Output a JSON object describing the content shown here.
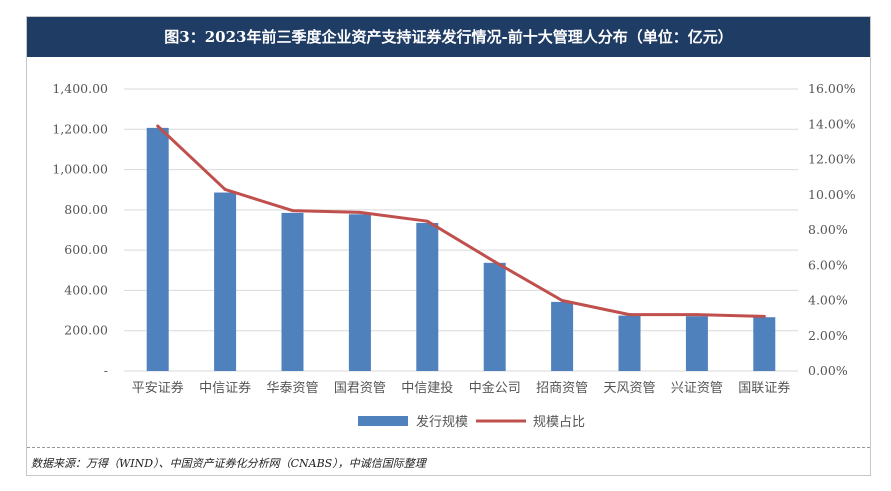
{
  "title": "图3：2023年前三季度企业资产支持证券发行情况-前十大管理人分布（单位：亿元）",
  "source": "数据来源：万得（WIND）、中国资产证券化分析网（CNABS），中诚信国际整理",
  "colors": {
    "bar": "#4f81bd",
    "line": "#c0504d",
    "header": "#1f3c64",
    "grid": "#d9d9d9"
  },
  "chart_data": {
    "type": "bar",
    "title": "",
    "categories": [
      "平安证券",
      "中信证券",
      "华泰资管",
      "国君资管",
      "中信建投",
      "中金公司",
      "招商资管",
      "天风资管",
      "兴证资管",
      "国联证券"
    ],
    "series": [
      {
        "name": "发行规模",
        "type": "bar",
        "axis": "left",
        "values": [
          1207,
          886,
          785,
          778,
          735,
          537,
          343,
          275,
          272,
          267
        ]
      },
      {
        "name": "规模占比",
        "type": "line",
        "axis": "right",
        "values": [
          13.9,
          10.3,
          9.1,
          9.0,
          8.5,
          6.2,
          4.0,
          3.2,
          3.2,
          3.1
        ]
      }
    ],
    "y_left": {
      "min": 0,
      "max": 1400,
      "ticks": [
        "-",
        "200.00",
        "400.00",
        "600.00",
        "800.00",
        "1,000.00",
        "1,200.00",
        "1,400.00"
      ]
    },
    "y_right": {
      "min": 0,
      "max": 16,
      "ticks": [
        "0.00%",
        "2.00%",
        "4.00%",
        "6.00%",
        "8.00%",
        "10.00%",
        "12.00%",
        "14.00%",
        "16.00%"
      ]
    },
    "grid": true,
    "legend": "bottom"
  }
}
